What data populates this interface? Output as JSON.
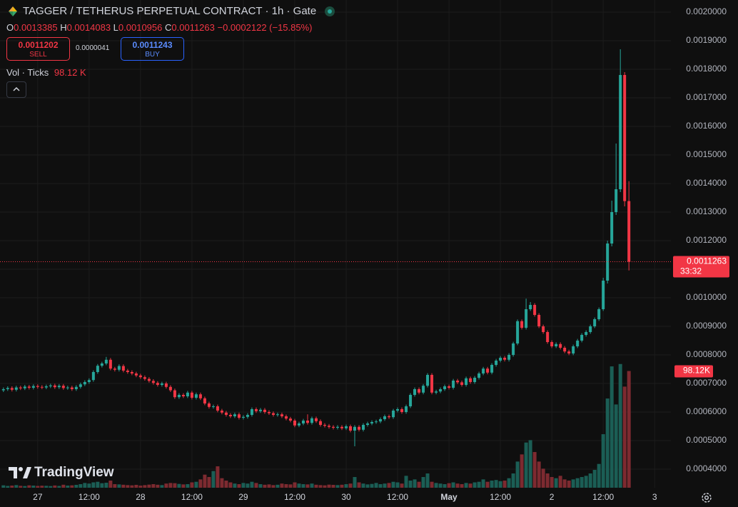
{
  "header": {
    "symbol": "TAGGER / TETHERUS PERPETUAL CONTRACT · 1h · Gate",
    "o_label": "O",
    "h_label": "H",
    "l_label": "L",
    "c_label": "C",
    "change": "−0.0002122 (−15.85%)",
    "sell_price": "0.0011202",
    "sell": "SELL",
    "spread": "0.0000041",
    "buy_price": "0.0011243",
    "buy": "BUY",
    "volume_title": "Vol · Ticks",
    "volume_value": "98.12 K"
  },
  "watermark": "TradingView",
  "chart_data": {
    "type": "candlestick",
    "open": [
      0.000676,
      0.00068,
      0.000684,
      0.000678,
      0.000686,
      0.000683,
      0.000689,
      0.000685,
      0.000691,
      0.000688,
      0.000686,
      0.00069,
      0.000693,
      0.000687,
      0.000692,
      0.000684,
      0.000686,
      0.00068,
      0.000688,
      0.000697,
      0.000705,
      0.000712,
      0.00074,
      0.000762,
      0.00077,
      0.000783,
      0.000752,
      0.000748,
      0.000761,
      0.000745,
      0.00074,
      0.000735,
      0.000728,
      0.000722,
      0.000716,
      0.000709,
      0.000702,
      0.000695,
      0.0007,
      0.000688,
      0.000676,
      0.000652,
      0.00066,
      0.000655,
      0.000668,
      0.00065,
      0.000662,
      0.000648,
      0.00063,
      0.000618,
      0.00062,
      0.000605,
      0.000598,
      0.00059,
      0.000585,
      0.000592,
      0.00058,
      0.000583,
      0.00059,
      0.00061,
      0.000603,
      0.000608,
      0.0006,
      0.000596,
      0.00059,
      0.000592,
      0.000585,
      0.000577,
      0.00057,
      0.000553,
      0.00056,
      0.00057,
      0.000562,
      0.000578,
      0.000568,
      0.000555,
      0.000552,
      0.000548,
      0.000545,
      0.000548,
      0.000543,
      0.00055,
      0.000535,
      0.000548,
      0.000538,
      0.000555,
      0.00056,
      0.000565,
      0.000567,
      0.000575,
      0.000585,
      0.000582,
      0.000605,
      0.00061,
      0.0006,
      0.00062,
      0.00066,
      0.00068,
      0.000668,
      0.000692,
      0.00073,
      0.000668,
      0.000672,
      0.00068,
      0.00069,
      0.000685,
      0.00071,
      0.000704,
      0.000695,
      0.000718,
      0.000705,
      0.00072,
      0.000735,
      0.000752,
      0.000738,
      0.000765,
      0.00078,
      0.00079,
      0.000783,
      0.0008,
      0.00084,
      0.000918,
      0.000895,
      0.00096,
      0.000975,
      0.00094,
      0.0009,
      0.00088,
      0.000845,
      0.00083,
      0.000838,
      0.000825,
      0.000812,
      0.000805,
      0.00083,
      0.00085,
      0.00087,
      0.00088,
      0.0009,
      0.000925,
      0.00096,
      0.00106,
      0.00119,
      0.0013,
      0.00138,
      0.00178,
      0.0013385
    ],
    "high": [
      0.000686,
      0.00069,
      0.00069,
      0.000692,
      0.000692,
      0.000695,
      0.000695,
      0.000697,
      0.000697,
      0.000694,
      0.000696,
      0.000699,
      0.000699,
      0.000698,
      0.000698,
      0.000692,
      0.000692,
      0.000694,
      0.000703,
      0.000711,
      0.000718,
      0.000746,
      0.000768,
      0.000776,
      0.000793,
      0.000789,
      0.000758,
      0.000767,
      0.000767,
      0.000751,
      0.000746,
      0.000741,
      0.000734,
      0.000728,
      0.000722,
      0.000715,
      0.000708,
      0.000706,
      0.000706,
      0.000694,
      0.000682,
      0.000666,
      0.000666,
      0.000674,
      0.000674,
      0.000668,
      0.000668,
      0.000654,
      0.000636,
      0.000626,
      0.000626,
      0.000611,
      0.000604,
      0.000596,
      0.000598,
      0.000598,
      0.000589,
      0.000596,
      0.000616,
      0.000616,
      0.000614,
      0.000614,
      0.000606,
      0.000602,
      0.000598,
      0.000598,
      0.000591,
      0.000583,
      0.000576,
      0.000566,
      0.000576,
      0.000592,
      0.000584,
      0.000584,
      0.000574,
      0.000561,
      0.000558,
      0.000554,
      0.000554,
      0.000554,
      0.000556,
      0.000556,
      0.000554,
      0.000554,
      0.000561,
      0.000566,
      0.000571,
      0.000573,
      0.000581,
      0.000591,
      0.000591,
      0.000611,
      0.000616,
      0.000616,
      0.000626,
      0.000666,
      0.000686,
      0.000686,
      0.000698,
      0.000736,
      0.000736,
      0.000678,
      0.000686,
      0.000696,
      0.000696,
      0.000716,
      0.000716,
      0.00071,
      0.000724,
      0.000724,
      0.000726,
      0.000741,
      0.000758,
      0.000758,
      0.000771,
      0.000786,
      0.000796,
      0.000796,
      0.000806,
      0.000846,
      0.000924,
      0.000924,
      0.000997,
      0.000985,
      0.000981,
      0.000946,
      0.000906,
      0.000886,
      0.000851,
      0.000844,
      0.000844,
      0.000831,
      0.000818,
      0.000836,
      0.000856,
      0.000876,
      0.000886,
      0.000906,
      0.000931,
      0.000966,
      0.00107,
      0.0012,
      0.00134,
      0.00154,
      0.00187,
      0.00179,
      0.0014083
    ],
    "low": [
      0.00067,
      0.000674,
      0.000672,
      0.000672,
      0.000677,
      0.000677,
      0.000679,
      0.000679,
      0.000682,
      0.00068,
      0.00068,
      0.000684,
      0.000681,
      0.000681,
      0.000678,
      0.000678,
      0.000674,
      0.000674,
      0.000682,
      0.000691,
      0.000699,
      0.000706,
      0.000734,
      0.000756,
      0.000764,
      0.000746,
      0.000742,
      0.000742,
      0.000739,
      0.000734,
      0.000729,
      0.000722,
      0.000716,
      0.00071,
      0.000703,
      0.000696,
      0.000689,
      0.000689,
      0.000682,
      0.00067,
      0.000646,
      0.000646,
      0.000649,
      0.000649,
      0.000644,
      0.000644,
      0.000642,
      0.000624,
      0.000612,
      0.000612,
      0.000599,
      0.000592,
      0.000584,
      0.000579,
      0.000579,
      0.000574,
      0.000574,
      0.000577,
      0.000584,
      0.000597,
      0.000597,
      0.000594,
      0.00059,
      0.000584,
      0.000584,
      0.000579,
      0.000571,
      0.000564,
      0.000547,
      0.000547,
      0.000554,
      0.000556,
      0.000556,
      0.000562,
      0.000549,
      0.000546,
      0.000542,
      0.000539,
      0.000539,
      0.000537,
      0.000537,
      0.000529,
      0.00048,
      0.000532,
      0.000532,
      0.000549,
      0.000554,
      0.000559,
      0.000561,
      0.000569,
      0.000576,
      0.000576,
      0.000599,
      0.000594,
      0.000594,
      0.000614,
      0.000654,
      0.000662,
      0.000662,
      0.000686,
      0.000662,
      0.000662,
      0.000666,
      0.000674,
      0.000679,
      0.000679,
      0.000698,
      0.000689,
      0.000689,
      0.000699,
      0.000699,
      0.000714,
      0.000729,
      0.000732,
      0.000732,
      0.000759,
      0.000774,
      0.000777,
      0.000777,
      0.000794,
      0.000834,
      0.000889,
      0.000889,
      0.000954,
      0.000934,
      0.000894,
      0.000874,
      0.000839,
      0.000824,
      0.000824,
      0.000819,
      0.000806,
      0.000799,
      0.000799,
      0.000824,
      0.000844,
      0.000864,
      0.000874,
      0.000894,
      0.000919,
      0.000954,
      0.00105,
      0.00118,
      0.00129,
      0.00137,
      0.00132,
      0.0010956
    ],
    "close": [
      0.00068,
      0.000684,
      0.000678,
      0.000686,
      0.000683,
      0.000689,
      0.000685,
      0.000691,
      0.000688,
      0.000686,
      0.00069,
      0.000693,
      0.000687,
      0.000692,
      0.000684,
      0.000686,
      0.00068,
      0.000688,
      0.000697,
      0.000705,
      0.000712,
      0.00074,
      0.000762,
      0.00077,
      0.000783,
      0.000752,
      0.000748,
      0.000761,
      0.000745,
      0.00074,
      0.000735,
      0.000728,
      0.000722,
      0.000716,
      0.000709,
      0.000702,
      0.000695,
      0.0007,
      0.000688,
      0.000676,
      0.000652,
      0.00066,
      0.000655,
      0.000668,
      0.00065,
      0.000662,
      0.000648,
      0.00063,
      0.000618,
      0.00062,
      0.000605,
      0.000598,
      0.00059,
      0.000585,
      0.000592,
      0.00058,
      0.000583,
      0.00059,
      0.00061,
      0.000603,
      0.000608,
      0.0006,
      0.000596,
      0.00059,
      0.000592,
      0.000585,
      0.000577,
      0.00057,
      0.000553,
      0.00056,
      0.00057,
      0.000562,
      0.000578,
      0.000568,
      0.000555,
      0.000552,
      0.000548,
      0.000545,
      0.000548,
      0.000543,
      0.00055,
      0.000535,
      0.000548,
      0.000538,
      0.000555,
      0.00056,
      0.000565,
      0.000567,
      0.000575,
      0.000585,
      0.000582,
      0.000605,
      0.00061,
      0.0006,
      0.00062,
      0.00066,
      0.00068,
      0.000668,
      0.000692,
      0.00073,
      0.000668,
      0.000672,
      0.00068,
      0.00069,
      0.000685,
      0.00071,
      0.000704,
      0.000695,
      0.000718,
      0.000705,
      0.00072,
      0.000735,
      0.000752,
      0.000738,
      0.000765,
      0.00078,
      0.00079,
      0.000783,
      0.0008,
      0.00084,
      0.000918,
      0.000895,
      0.00096,
      0.000975,
      0.00094,
      0.0009,
      0.00088,
      0.000845,
      0.00083,
      0.000838,
      0.000825,
      0.000812,
      0.000805,
      0.00083,
      0.00085,
      0.00087,
      0.00088,
      0.0009,
      0.000925,
      0.00096,
      0.00106,
      0.00119,
      0.0013,
      0.00138,
      0.00178,
      0.0013385,
      0.0011263
    ],
    "volume": [
      2000,
      1500,
      1800,
      2200,
      1600,
      1400,
      2000,
      1800,
      1500,
      1700,
      1600,
      1400,
      1900,
      1500,
      2500,
      1800,
      2000,
      2400,
      3000,
      4000,
      3500,
      4500,
      5000,
      3800,
      4200,
      6000,
      3000,
      2800,
      2500,
      2200,
      2000,
      2400,
      1800,
      2200,
      2600,
      3000,
      2500,
      2200,
      3500,
      4000,
      3800,
      3200,
      2800,
      3000,
      4500,
      5000,
      7000,
      11000,
      9000,
      14000,
      18000,
      8000,
      6000,
      4500,
      3500,
      3000,
      4000,
      3500,
      5000,
      4000,
      3000,
      2500,
      2800,
      2200,
      2500,
      3500,
      3000,
      2800,
      4500,
      3500,
      3000,
      2800,
      3500,
      2500,
      2200,
      2000,
      2600,
      2400,
      2200,
      2500,
      3000,
      3500,
      9000,
      4500,
      3500,
      2800,
      3200,
      4000,
      3000,
      3500,
      4000,
      5000,
      4500,
      3500,
      10000,
      6000,
      7000,
      5000,
      9000,
      12000,
      5000,
      4000,
      3500,
      3000,
      3800,
      4500,
      3500,
      3000,
      4000,
      3500,
      4500,
      5000,
      7000,
      5000,
      6000,
      6500,
      5500,
      6000,
      8000,
      12000,
      22000,
      28000,
      38000,
      40000,
      30000,
      22000,
      16000,
      12000,
      9000,
      8000,
      10000,
      7000,
      6000,
      7000,
      8000,
      9000,
      10000,
      12000,
      15000,
      20000,
      45000,
      75000,
      102000,
      70000,
      104000,
      85000,
      98120
    ],
    "last_volume_label": "98.12K",
    "countdown": "33:32",
    "up_color": "#26a69a",
    "down_color": "#f23645",
    "up_volume_color": "#1b5e55",
    "down_volume_color": "#7d2a30",
    "ylim": [
      0.000335,
      0.0020425
    ],
    "yticks": [
      {
        "value": 0.0004,
        "label": "0.0004000"
      },
      {
        "value": 0.0005,
        "label": "0.0005000"
      },
      {
        "value": 0.0006,
        "label": "0.0006000"
      },
      {
        "value": 0.0007,
        "label": "0.0007000"
      },
      {
        "value": 0.0008,
        "label": "0.0008000"
      },
      {
        "value": 0.0009,
        "label": "0.0009000"
      },
      {
        "value": 0.001,
        "label": "0.0010000"
      },
      {
        "value": 0.0011,
        "label": "0.0011000"
      },
      {
        "value": 0.0012,
        "label": "0.0012000"
      },
      {
        "value": 0.0013,
        "label": "0.0013000"
      },
      {
        "value": 0.0014,
        "label": "0.0014000"
      },
      {
        "value": 0.0015,
        "label": "0.0015000"
      },
      {
        "value": 0.0016,
        "label": "0.0016000"
      },
      {
        "value": 0.0017,
        "label": "0.0017000"
      },
      {
        "value": 0.0018,
        "label": "0.0018000"
      },
      {
        "value": 0.0019,
        "label": "0.0019000"
      },
      {
        "value": 0.002,
        "label": "0.0020000"
      }
    ],
    "xlim": [
      -0.8,
      155.8
    ],
    "xticks": [
      {
        "value": 8,
        "label": "27"
      },
      {
        "value": 20,
        "label": "12:00"
      },
      {
        "value": 32,
        "label": "28"
      },
      {
        "value": 44,
        "label": "12:00"
      },
      {
        "value": 56,
        "label": "29"
      },
      {
        "value": 68,
        "label": "12:00"
      },
      {
        "value": 80,
        "label": "30"
      },
      {
        "value": 92,
        "label": "12:00"
      },
      {
        "value": 104,
        "label": "May"
      },
      {
        "value": 116,
        "label": "12:00"
      },
      {
        "value": 128,
        "label": "2"
      },
      {
        "value": 140,
        "label": "12:00"
      },
      {
        "value": 152,
        "label": "3"
      }
    ],
    "volume_lim": [
      0,
      410000
    ],
    "grid": true
  }
}
